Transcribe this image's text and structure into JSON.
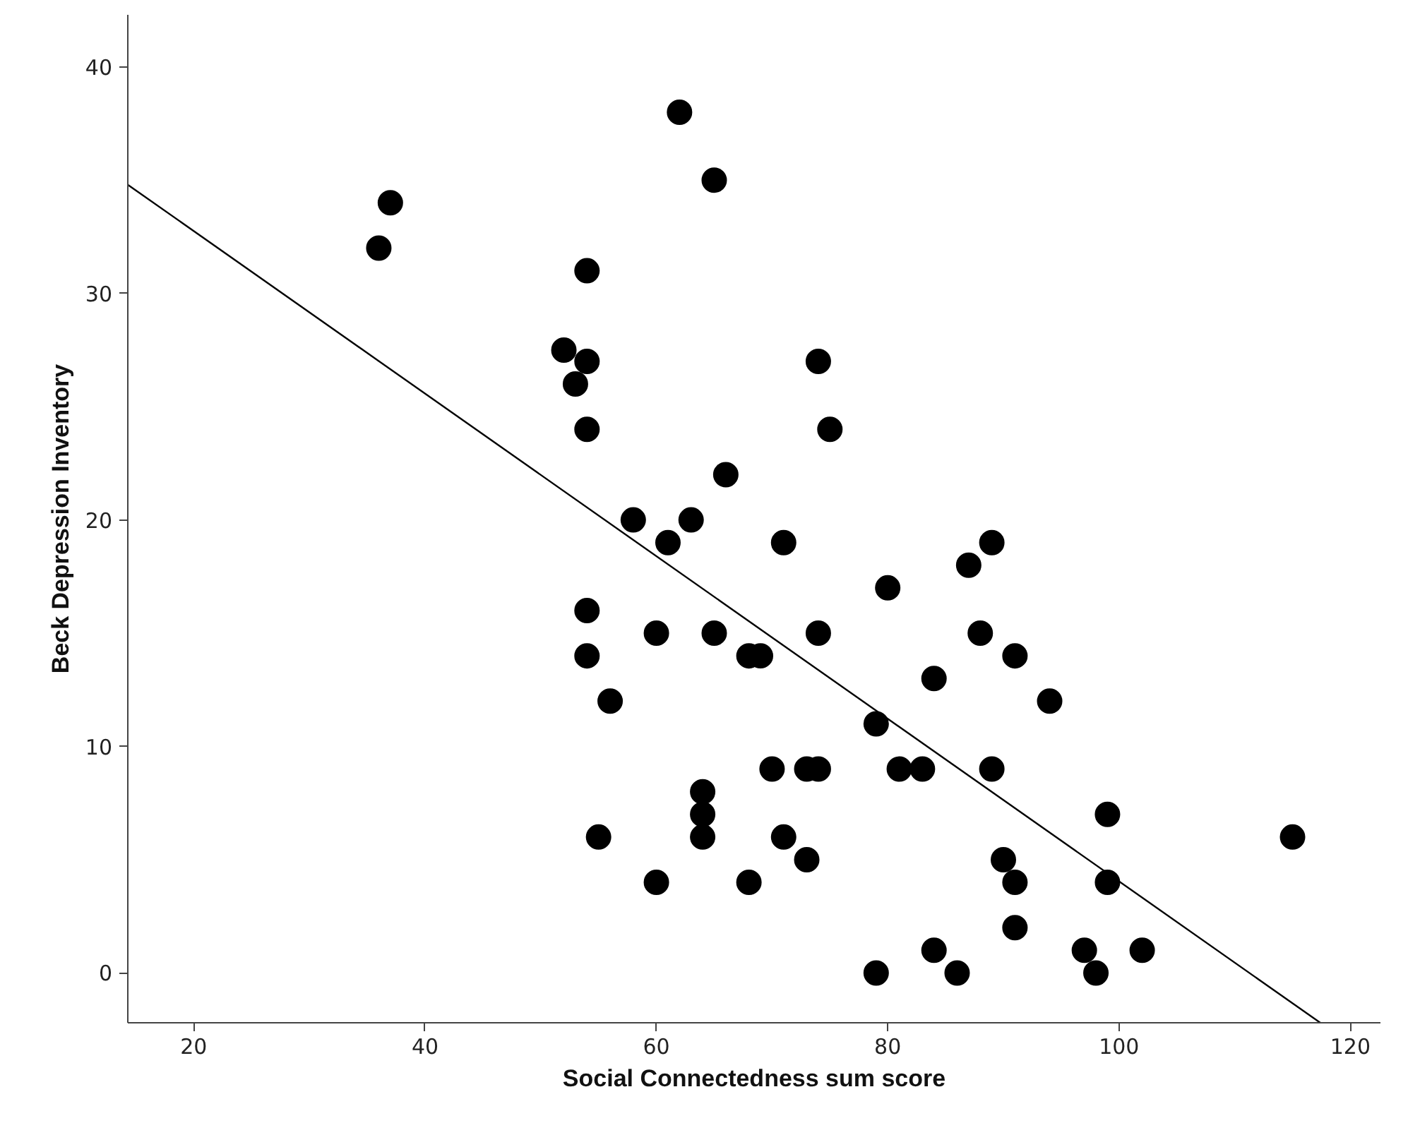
{
  "chart_data": {
    "type": "scatter",
    "xlabel": "Social Connectedness sum score",
    "ylabel": "Beck Depression Inventory",
    "xlim": [
      14.3,
      122.6
    ],
    "ylim": [
      -2.2,
      42.3
    ],
    "xticks": [
      20,
      40,
      60,
      80,
      100,
      120
    ],
    "yticks": [
      0,
      10,
      20,
      30,
      40
    ],
    "grid": false,
    "series": [
      {
        "marker": "circle",
        "color": "#000000",
        "x": [
          36,
          37,
          62,
          65,
          54,
          52,
          54,
          53,
          54,
          74,
          75,
          66,
          58,
          63,
          61,
          71,
          54,
          60,
          65,
          74,
          54,
          68,
          69,
          56,
          80,
          87,
          89,
          88,
          84,
          91,
          94,
          79,
          70,
          73,
          74,
          81,
          83,
          89,
          64,
          64,
          64,
          55,
          71,
          99,
          90,
          73,
          60,
          68,
          91,
          99,
          91,
          84,
          97,
          102,
          79,
          86,
          98,
          115
        ],
        "values": [
          32,
          34,
          38,
          35,
          31,
          27.5,
          27,
          26,
          24,
          27,
          24,
          22,
          20,
          20,
          19,
          19,
          16,
          15,
          15,
          15,
          14,
          14,
          14,
          12,
          17,
          18,
          19,
          15,
          13,
          14,
          12,
          11,
          9,
          9,
          9,
          9,
          9,
          9,
          8,
          7,
          6,
          6,
          6,
          7,
          5,
          5,
          4,
          4,
          4,
          4,
          2,
          1,
          1,
          1,
          0,
          0,
          0,
          6
        ]
      },
      {
        "type": "line",
        "marker": "none",
        "color": "#000000",
        "line_style": "solid",
        "x": [
          14.3,
          117.4
        ],
        "values": [
          34.8,
          -2.2
        ]
      }
    ]
  }
}
